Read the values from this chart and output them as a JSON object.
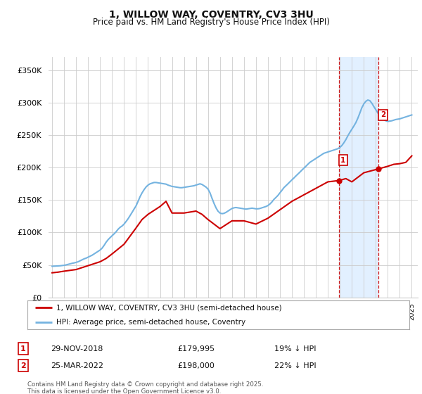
{
  "title": "1, WILLOW WAY, COVENTRY, CV3 3HU",
  "subtitle": "Price paid vs. HM Land Registry's House Price Index (HPI)",
  "ylabel_ticks": [
    "£0",
    "£50K",
    "£100K",
    "£150K",
    "£200K",
    "£250K",
    "£300K",
    "£350K"
  ],
  "ytick_values": [
    0,
    50000,
    100000,
    150000,
    200000,
    250000,
    300000,
    350000
  ],
  "ylim": [
    0,
    370000
  ],
  "xlim_start": 1994.7,
  "xlim_end": 2025.5,
  "background_color": "#ffffff",
  "grid_color": "#cccccc",
  "hpi_color": "#74b3e0",
  "price_color": "#cc0000",
  "highlight_bg": "#ddeeff",
  "marker1_x": 2018.91,
  "marker1_y": 179995,
  "marker2_x": 2022.23,
  "marker2_y": 198000,
  "marker1_label": "1",
  "marker2_label": "2",
  "legend_line1": "1, WILLOW WAY, COVENTRY, CV3 3HU (semi-detached house)",
  "legend_line2": "HPI: Average price, semi-detached house, Coventry",
  "table_row1": [
    "1",
    "29-NOV-2018",
    "£179,995",
    "19% ↓ HPI"
  ],
  "table_row2": [
    "2",
    "25-MAR-2022",
    "£198,000",
    "22% ↓ HPI"
  ],
  "footnote": "Contains HM Land Registry data © Crown copyright and database right 2025.\nThis data is licensed under the Open Government Licence v3.0.",
  "hpi_data_x": [
    1995.0,
    1995.17,
    1995.33,
    1995.5,
    1995.67,
    1995.83,
    1996.0,
    1996.17,
    1996.33,
    1996.5,
    1996.67,
    1996.83,
    1997.0,
    1997.17,
    1997.33,
    1997.5,
    1997.67,
    1997.83,
    1998.0,
    1998.17,
    1998.33,
    1998.5,
    1998.67,
    1998.83,
    1999.0,
    1999.17,
    1999.33,
    1999.5,
    1999.67,
    1999.83,
    2000.0,
    2000.17,
    2000.33,
    2000.5,
    2000.67,
    2000.83,
    2001.0,
    2001.17,
    2001.33,
    2001.5,
    2001.67,
    2001.83,
    2002.0,
    2002.17,
    2002.33,
    2002.5,
    2002.67,
    2002.83,
    2003.0,
    2003.17,
    2003.33,
    2003.5,
    2003.67,
    2003.83,
    2004.0,
    2004.17,
    2004.33,
    2004.5,
    2004.67,
    2004.83,
    2005.0,
    2005.17,
    2005.33,
    2005.5,
    2005.67,
    2005.83,
    2006.0,
    2006.17,
    2006.33,
    2006.5,
    2006.67,
    2006.83,
    2007.0,
    2007.17,
    2007.33,
    2007.5,
    2007.67,
    2007.83,
    2008.0,
    2008.17,
    2008.33,
    2008.5,
    2008.67,
    2008.83,
    2009.0,
    2009.17,
    2009.33,
    2009.5,
    2009.67,
    2009.83,
    2010.0,
    2010.17,
    2010.33,
    2010.5,
    2010.67,
    2010.83,
    2011.0,
    2011.17,
    2011.33,
    2011.5,
    2011.67,
    2011.83,
    2012.0,
    2012.17,
    2012.33,
    2012.5,
    2012.67,
    2012.83,
    2013.0,
    2013.17,
    2013.33,
    2013.5,
    2013.67,
    2013.83,
    2014.0,
    2014.17,
    2014.33,
    2014.5,
    2014.67,
    2014.83,
    2015.0,
    2015.17,
    2015.33,
    2015.5,
    2015.67,
    2015.83,
    2016.0,
    2016.17,
    2016.33,
    2016.5,
    2016.67,
    2016.83,
    2017.0,
    2017.17,
    2017.33,
    2017.5,
    2017.67,
    2017.83,
    2018.0,
    2018.17,
    2018.33,
    2018.5,
    2018.67,
    2018.83,
    2019.0,
    2019.17,
    2019.33,
    2019.5,
    2019.67,
    2019.83,
    2020.0,
    2020.17,
    2020.33,
    2020.5,
    2020.67,
    2020.83,
    2021.0,
    2021.17,
    2021.33,
    2021.5,
    2021.67,
    2021.83,
    2022.0,
    2022.17,
    2022.33,
    2022.5,
    2022.67,
    2022.83,
    2023.0,
    2023.17,
    2023.33,
    2023.5,
    2023.67,
    2023.83,
    2024.0,
    2024.17,
    2024.33,
    2024.5,
    2024.67,
    2024.83,
    2025.0
  ],
  "hpi_data_y": [
    48000,
    48200,
    48400,
    48600,
    48800,
    49100,
    49500,
    50200,
    51000,
    51800,
    52600,
    53200,
    54000,
    55000,
    56500,
    58000,
    59500,
    60500,
    62000,
    63500,
    65000,
    67000,
    69000,
    71000,
    73000,
    76000,
    80000,
    85000,
    89000,
    92000,
    95000,
    98000,
    101000,
    105000,
    108000,
    110000,
    113000,
    117000,
    121000,
    126000,
    131000,
    136000,
    141000,
    148000,
    155000,
    161000,
    166000,
    170000,
    173000,
    175000,
    176000,
    177000,
    177000,
    176500,
    176000,
    175500,
    175000,
    174500,
    173000,
    172000,
    171000,
    170500,
    170000,
    169500,
    169000,
    169000,
    169500,
    170000,
    170500,
    171000,
    171500,
    172000,
    173000,
    174000,
    175000,
    174000,
    172000,
    170000,
    167000,
    161000,
    153000,
    145000,
    138000,
    133000,
    130000,
    129000,
    129500,
    131000,
    133000,
    135000,
    137000,
    138000,
    138500,
    138000,
    137500,
    137000,
    136500,
    136000,
    136500,
    137000,
    137500,
    137000,
    136500,
    136500,
    137000,
    138000,
    139000,
    140000,
    141500,
    144000,
    147000,
    151000,
    154000,
    157000,
    161000,
    165000,
    169000,
    172000,
    175000,
    178000,
    181000,
    184000,
    187000,
    190000,
    193000,
    196000,
    199000,
    202000,
    205000,
    208000,
    210000,
    212000,
    214000,
    216000,
    218000,
    220000,
    222000,
    223000,
    224000,
    225000,
    226000,
    227000,
    228000,
    229000,
    231000,
    234000,
    238000,
    243000,
    249000,
    254000,
    259000,
    264000,
    269000,
    276000,
    284000,
    292000,
    298000,
    302000,
    304000,
    303000,
    299000,
    294000,
    289000,
    284000,
    280000,
    277000,
    274000,
    272000,
    271000,
    271500,
    272000,
    273000,
    274000,
    274500,
    275000,
    276000,
    277000,
    278000,
    279000,
    280000,
    281000
  ],
  "price_data_x": [
    1995.0,
    1995.5,
    1996.0,
    1997.0,
    1997.5,
    1998.0,
    1999.0,
    1999.5,
    2000.0,
    2001.0,
    2002.0,
    2002.5,
    2003.0,
    2004.0,
    2004.5,
    2005.0,
    2006.0,
    2007.0,
    2007.5,
    2008.0,
    2009.0,
    2010.0,
    2011.0,
    2012.0,
    2013.0,
    2014.0,
    2015.0,
    2016.0,
    2017.0,
    2018.0,
    2018.91,
    2019.5,
    2020.0,
    2021.0,
    2022.23,
    2023.0,
    2023.5,
    2024.0,
    2024.5,
    2025.0
  ],
  "price_data_y": [
    38000,
    39000,
    40500,
    43000,
    46000,
    49000,
    55000,
    60000,
    67000,
    82000,
    107000,
    120000,
    128000,
    140000,
    148000,
    130000,
    130000,
    133000,
    128000,
    120000,
    106000,
    118000,
    118000,
    113000,
    122000,
    135000,
    148000,
    158000,
    168000,
    178000,
    179995,
    183000,
    178000,
    192000,
    198000,
    202000,
    205000,
    206000,
    208000,
    218000
  ]
}
